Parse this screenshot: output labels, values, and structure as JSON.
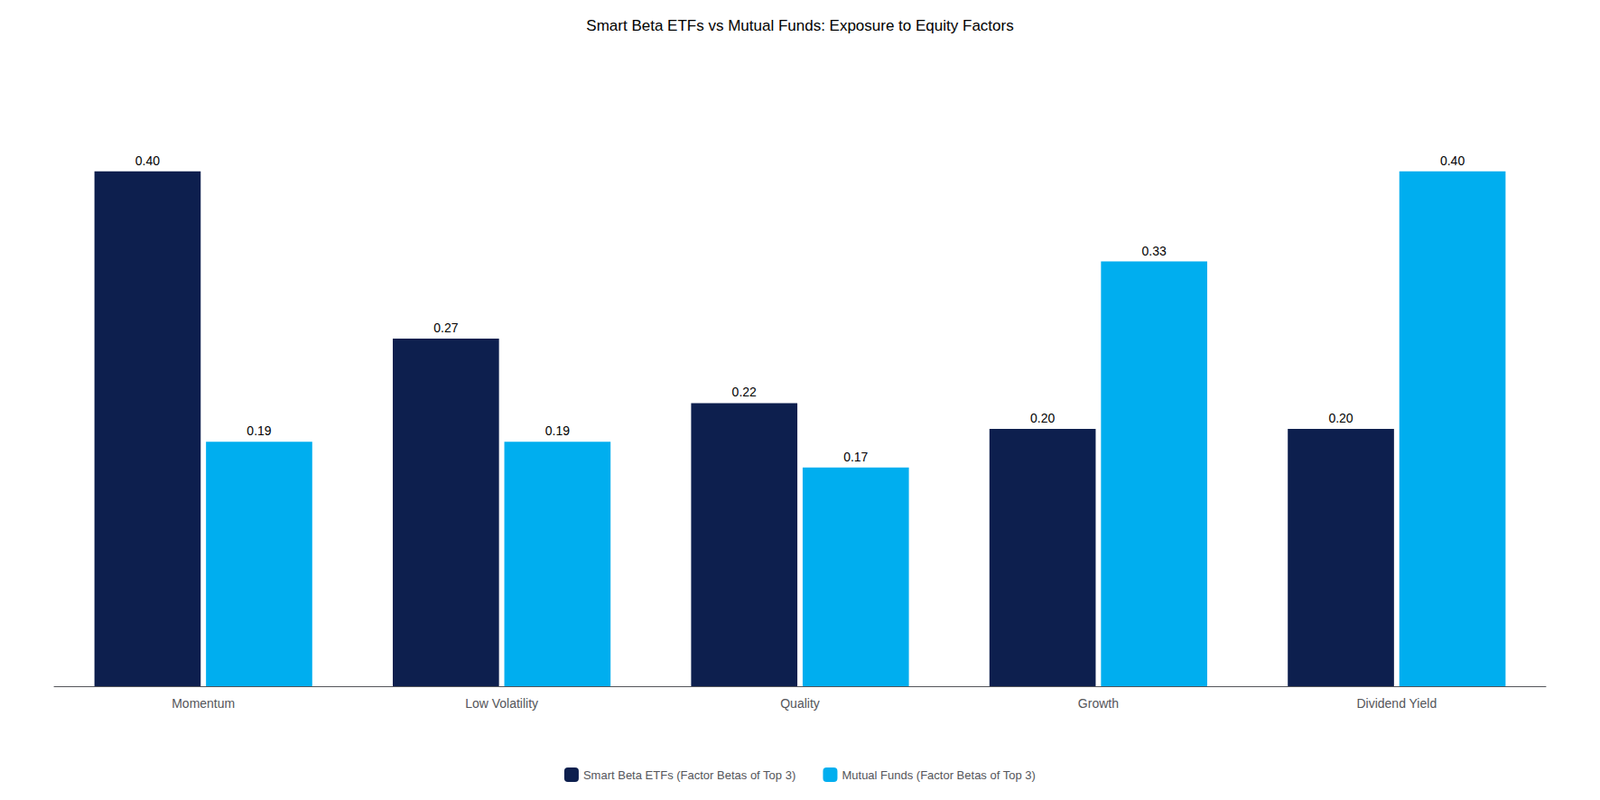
{
  "chart_data": {
    "type": "bar",
    "title": "Smart Beta ETFs vs Mutual Funds: Exposure to Equity Factors",
    "categories": [
      "Momentum",
      "Low Volatility",
      "Quality",
      "Growth",
      "Dividend Yield"
    ],
    "series": [
      {
        "name": "Smart Beta ETFs (Factor Betas of Top 3)",
        "color": "#0D1F4E",
        "values": [
          0.4,
          0.27,
          0.22,
          0.2,
          0.2
        ],
        "value_labels": [
          "0.40",
          "0.27",
          "0.22",
          "0.20",
          "0.20"
        ]
      },
      {
        "name": "Mutual Funds (Factor Betas of Top 3)",
        "color": "#00AEEF",
        "values": [
          0.19,
          0.19,
          0.17,
          0.33,
          0.4
        ],
        "value_labels": [
          "0.19",
          "0.19",
          "0.17",
          "0.33",
          "0.40"
        ]
      }
    ],
    "ylim": [
      0,
      0.47
    ],
    "grid": false,
    "legend": "bottom",
    "data_labels": true,
    "tick_labels": "x"
  }
}
